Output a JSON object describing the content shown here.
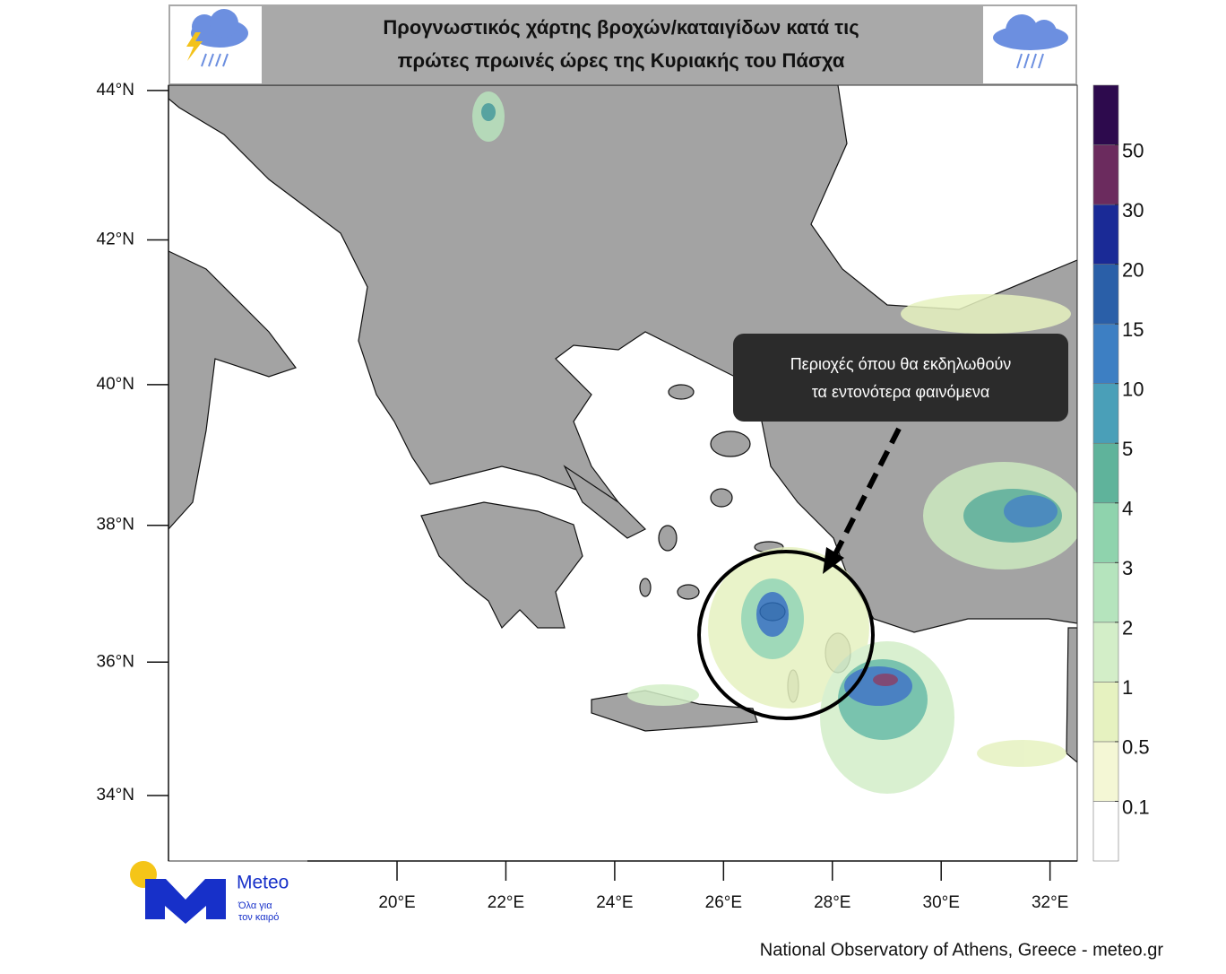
{
  "header": {
    "title_lines": [
      "Προγνωστικός χάρτης βροχών/καταιγίδων κατά τις",
      "πρώτες πρωινές ώρες της Κυριακής του Πάσχα"
    ]
  },
  "map": {
    "type": "map",
    "projection": "mercator",
    "xlim": [
      15.8,
      32.5
    ],
    "ylim": [
      33,
      44.07
    ],
    "xticks": [
      {
        "value": 20,
        "label": "20°E"
      },
      {
        "value": 22,
        "label": "22°E"
      },
      {
        "value": 24,
        "label": "24°E"
      },
      {
        "value": 26,
        "label": "26°E"
      },
      {
        "value": 28,
        "label": "28°E"
      },
      {
        "value": 30,
        "label": "30°E"
      },
      {
        "value": 32,
        "label": "32°E"
      }
    ],
    "yticks": [
      {
        "value": 44,
        "label": "44°N"
      },
      {
        "value": 42,
        "label": "42°N"
      },
      {
        "value": 40,
        "label": "40°N"
      },
      {
        "value": 38,
        "label": "38°N"
      },
      {
        "value": 36,
        "label": "36°N"
      },
      {
        "value": 34,
        "label": "34°N"
      }
    ],
    "callout_lines": [
      "Περιοχές όπου θα εκδηλωθούν",
      "τα εντονότερα φαινόμενα"
    ],
    "colorbar": {
      "levels": [
        0.1,
        0.5,
        1,
        2,
        3,
        4,
        5,
        10,
        15,
        20,
        30,
        50
      ],
      "colors": [
        "#ffffff",
        "#f4f7d5",
        "#e6f2c0",
        "#d3eec8",
        "#b5e4bd",
        "#8fd3ad",
        "#5fb39b",
        "#4a9fb8",
        "#3d7fc3",
        "#2a5fa8",
        "#1a2a96",
        "#6b2b5e",
        "#2d0a4d"
      ]
    }
  },
  "logo": {
    "brand": "Meteo",
    "tagline_lines": [
      "Όλα για",
      "τον καιρό"
    ]
  },
  "footer": "National Observatory of Athens, Greece - meteo.gr"
}
